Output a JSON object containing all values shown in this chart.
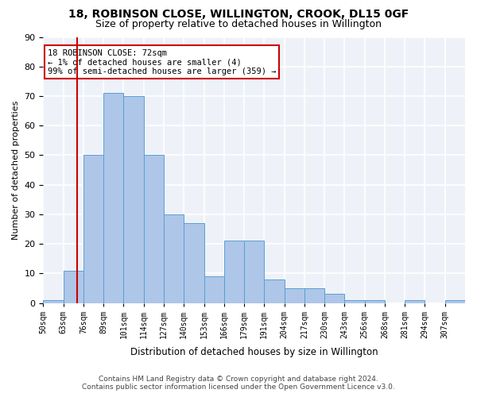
{
  "title": "18, ROBINSON CLOSE, WILLINGTON, CROOK, DL15 0GF",
  "subtitle": "Size of property relative to detached houses in Willington",
  "xlabel": "Distribution of detached houses by size in Willington",
  "ylabel": "Number of detached properties",
  "bar_color": "#aec6e8",
  "bar_edge_color": "#5a9fd4",
  "background_color": "#eef2f8",
  "grid_color": "#ffffff",
  "bin_labels": [
    "50sqm",
    "63sqm",
    "76sqm",
    "89sqm",
    "101sqm",
    "114sqm",
    "127sqm",
    "140sqm",
    "153sqm",
    "166sqm",
    "179sqm",
    "191sqm",
    "204sqm",
    "217sqm",
    "230sqm",
    "243sqm",
    "256sqm",
    "268sqm",
    "281sqm",
    "294sqm",
    "307sqm"
  ],
  "bar_values": [
    1,
    11,
    50,
    71,
    70,
    50,
    30,
    27,
    9,
    21,
    21,
    8,
    5,
    5,
    3,
    1,
    1,
    0,
    1,
    0,
    1
  ],
  "ylim": [
    0,
    90
  ],
  "yticks": [
    0,
    10,
    20,
    30,
    40,
    50,
    60,
    70,
    80,
    90
  ],
  "annotation_title": "18 ROBINSON CLOSE: 72sqm",
  "annotation_line1": "← 1% of detached houses are smaller (4)",
  "annotation_line2": "99% of semi-detached houses are larger (359) →",
  "vline_color": "#cc0000",
  "annotation_box_color": "#cc0000",
  "vline_pos": 1.69,
  "footer_line1": "Contains HM Land Registry data © Crown copyright and database right 2024.",
  "footer_line2": "Contains public sector information licensed under the Open Government Licence v3.0."
}
